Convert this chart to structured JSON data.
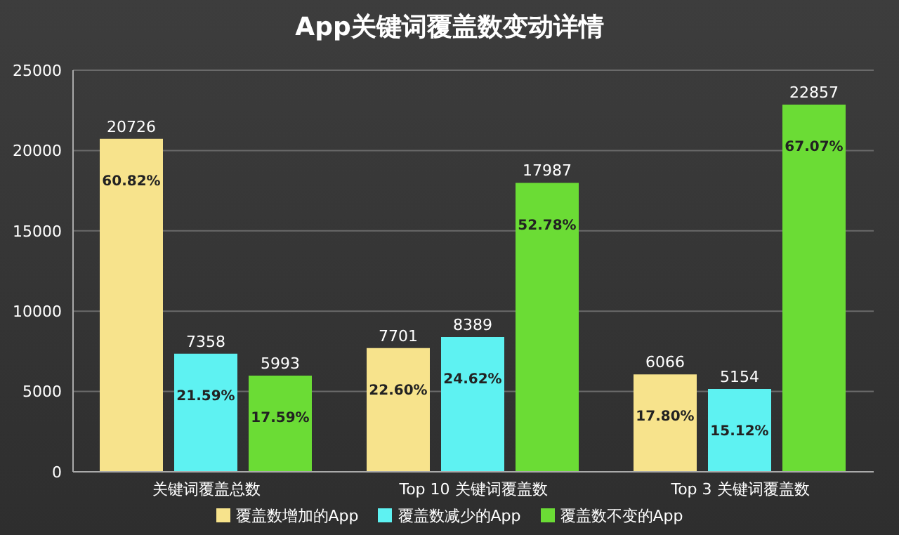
{
  "chart_data": {
    "type": "bar",
    "title": "App关键词覆盖数变动详情",
    "categories": [
      "关键词覆盖总数",
      "Top 10 关键词覆盖数",
      "Top 3 关键词覆盖数"
    ],
    "series": [
      {
        "name": "覆盖数增加的App",
        "color": "#f7e38c",
        "values": [
          20726,
          7701,
          6066
        ],
        "value_labels": [
          "20726",
          "7701",
          "6066"
        ]
      },
      {
        "name": "覆盖数减少的App",
        "color": "#5ef2f2",
        "values": [
          7358,
          8389,
          5154
        ],
        "value_labels": [
          "7358",
          "8389",
          "5154"
        ]
      },
      {
        "name": "覆盖数不变的App",
        "color": "#6bdc35",
        "values": [
          5993,
          17987,
          22857
        ],
        "value_labels": [
          "5993",
          "17987",
          "22857"
        ]
      }
    ],
    "annotations": [
      "60.82%",
      "22.60%",
      "17.80%",
      "21.59%",
      "24.62%",
      "15.12%",
      "17.59%",
      "52.78%",
      "67.07%"
    ],
    "ylim": [
      0,
      25000
    ],
    "yticks": [
      0,
      5000,
      10000,
      15000,
      20000,
      25000
    ],
    "grid": "y",
    "legend": "bottom"
  }
}
